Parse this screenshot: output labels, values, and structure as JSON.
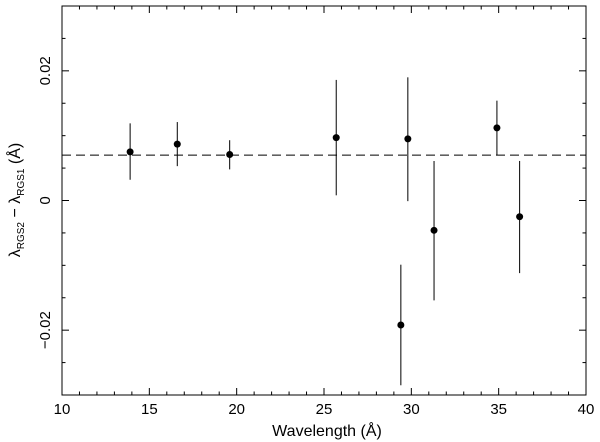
{
  "chart_data": {
    "type": "scatter",
    "title": "",
    "xlabel": "Wavelength (Å)",
    "ylabel": {
      "lambda": "λ",
      "sub1": "RGS2",
      "minus": " − ",
      "lambda2": "λ",
      "sub2": "RGS1",
      "unit": " (Å)"
    },
    "xlim": [
      10,
      40
    ],
    "ylim": [
      -0.03,
      0.03
    ],
    "x_ticks": [
      10,
      15,
      20,
      25,
      30,
      35,
      40
    ],
    "x_tick_labels": [
      "10",
      "15",
      "20",
      "25",
      "30",
      "35",
      "40"
    ],
    "y_ticks": [
      -0.02,
      0,
      0.02
    ],
    "y_tick_labels": [
      "−0.02",
      "0",
      "0.02"
    ],
    "grid": false,
    "reference_line": {
      "y": 0.007,
      "style": "dashed"
    },
    "points": [
      {
        "x": 13.9,
        "y": 0.0075,
        "y_low": 0.0032,
        "y_high": 0.0119
      },
      {
        "x": 16.6,
        "y": 0.0087,
        "y_low": 0.0053,
        "y_high": 0.0121
      },
      {
        "x": 19.6,
        "y": 0.0071,
        "y_low": 0.0048,
        "y_high": 0.0093
      },
      {
        "x": 25.7,
        "y": 0.0097,
        "y_low": 0.0008,
        "y_high": 0.0186
      },
      {
        "x": 29.4,
        "y": -0.0192,
        "y_low": -0.0285,
        "y_high": -0.0099
      },
      {
        "x": 29.8,
        "y": 0.0095,
        "y_low": -0.0001,
        "y_high": 0.019
      },
      {
        "x": 31.3,
        "y": -0.0046,
        "y_low": -0.0154,
        "y_high": 0.0061
      },
      {
        "x": 34.9,
        "y": 0.0112,
        "y_low": 0.007,
        "y_high": 0.0154
      },
      {
        "x": 36.2,
        "y": -0.0025,
        "y_low": -0.0112,
        "y_high": 0.0061
      }
    ],
    "colors": {
      "marker": "#000000",
      "line": "#000000"
    }
  }
}
